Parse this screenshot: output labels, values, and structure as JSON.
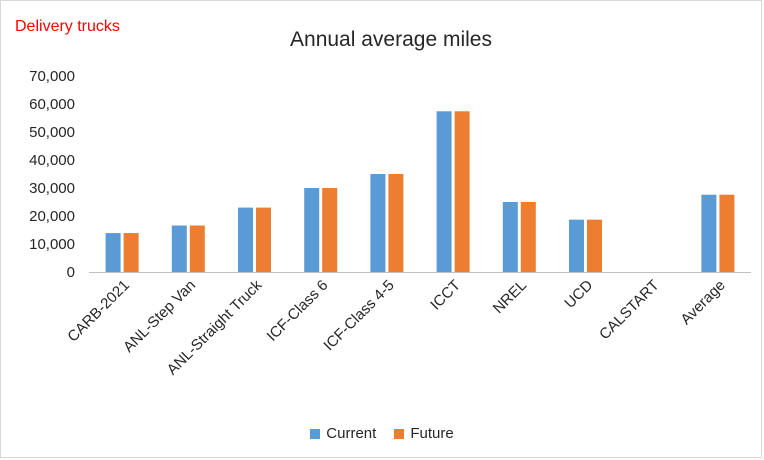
{
  "chart_data": {
    "type": "bar",
    "corner_note": "Delivery trucks",
    "title": "Annual average miles",
    "categories": [
      "CARB-2021",
      "ANL-Step Van",
      "ANL-Straight Truck",
      "ICF-Class 6",
      "ICF-Class 4-5",
      "ICCT",
      "NREL",
      "UCD",
      "CALSTART",
      "Average"
    ],
    "series": [
      {
        "name": "Current",
        "values": [
          13900,
          16600,
          23000,
          30000,
          35000,
          57400,
          25000,
          18700,
          0,
          27600
        ]
      },
      {
        "name": "Future",
        "values": [
          13900,
          16600,
          23000,
          30000,
          35000,
          57400,
          25000,
          18700,
          0,
          27600
        ]
      }
    ],
    "ylim": [
      0,
      70000
    ],
    "yticks": [
      "70,000",
      "60,000",
      "50,000",
      "40,000",
      "30,000",
      "20,000",
      "10,000",
      "0"
    ],
    "grid": false,
    "legend": "bottom",
    "colors": {
      "current": "#5B9BD5",
      "future": "#ED7D31",
      "corner_note": "#FF0000",
      "axis": "#bfbfbf",
      "text": "#262626"
    }
  }
}
